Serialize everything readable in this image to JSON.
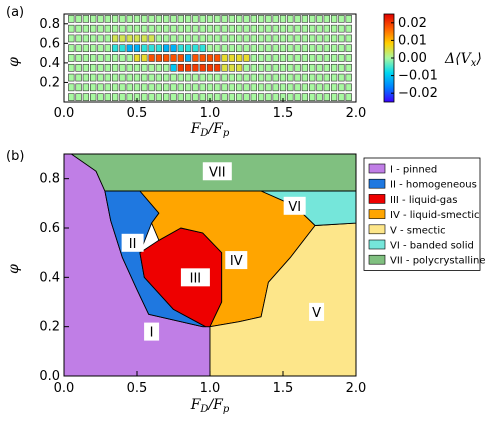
{
  "chart_data": [
    {
      "type": "heatmap",
      "panel_label": "(a)",
      "xlabel": "F_D/F_p",
      "ylabel": "φ",
      "xlim": [
        0,
        2
      ],
      "ylim": [
        0,
        0.9
      ],
      "xticks": [
        "0.0",
        "0.5",
        "1.0",
        "1.5",
        "2.0"
      ],
      "yticks": [
        "0.2",
        "0.4",
        "0.6",
        "0.8"
      ],
      "colorbar": {
        "label": "Δ⟨V_x⟩",
        "range": [
          -0.025,
          0.025
        ],
        "ticks": [
          "0.02",
          "0.01",
          "0.00",
          "−0.01",
          "−0.02"
        ],
        "colors": [
          "#3a00ff",
          "#0080ff",
          "#00d8f0",
          "#a8f8a0",
          "#ffd000",
          "#ff6000",
          "#e00000"
        ]
      },
      "phi_rows": [
        0.05,
        0.15,
        0.25,
        0.35,
        0.45,
        0.55,
        0.65,
        0.75,
        0.85
      ],
      "fd_start": 0.05,
      "fd_step": 0.05,
      "fd_count": 39,
      "default_value": 0.0,
      "features": [
        {
          "phi": 0.45,
          "from": 0.6,
          "to": 1.05,
          "value": 0.018
        },
        {
          "phi": 0.45,
          "from": 0.5,
          "to": 0.55,
          "value": 0.006
        },
        {
          "phi": 0.45,
          "from": 1.1,
          "to": 1.25,
          "value": 0.006
        },
        {
          "phi": 0.45,
          "from": 0.85,
          "to": 0.85,
          "value": -0.012
        },
        {
          "phi": 0.35,
          "from": 0.8,
          "to": 1.05,
          "value": 0.02
        },
        {
          "phi": 0.35,
          "from": 0.75,
          "to": 0.75,
          "value": -0.01
        },
        {
          "phi": 0.35,
          "from": 1.1,
          "to": 1.2,
          "value": 0.005
        },
        {
          "phi": 0.55,
          "from": 0.35,
          "to": 0.95,
          "value": -0.006
        },
        {
          "phi": 0.55,
          "from": 0.45,
          "to": 0.5,
          "value": -0.012
        },
        {
          "phi": 0.55,
          "from": 0.7,
          "to": 0.75,
          "value": -0.012
        },
        {
          "phi": 0.65,
          "from": 0.35,
          "to": 0.6,
          "value": 0.004
        }
      ]
    },
    {
      "type": "area",
      "panel_label": "(b)",
      "xlabel": "F_D/F_p",
      "ylabel": "φ",
      "xlim": [
        0,
        2
      ],
      "ylim": [
        0,
        0.9
      ],
      "xticks": [
        "0.0",
        "0.5",
        "1.0",
        "1.5",
        "2.0"
      ],
      "yticks": [
        "0.0",
        "0.2",
        "0.4",
        "0.6",
        "0.8"
      ],
      "regions": [
        {
          "id": "I",
          "label": "I - pinned",
          "color": "#c07ee6",
          "points": [
            [
              0,
              0
            ],
            [
              1.0,
              0
            ],
            [
              1.0,
              0.2
            ],
            [
              0.95,
              0.2
            ],
            [
              0.58,
              0.25
            ],
            [
              0.5,
              0.35
            ],
            [
              0.4,
              0.48
            ],
            [
              0.32,
              0.63
            ],
            [
              0.28,
              0.75
            ],
            [
              0.22,
              0.83
            ],
            [
              0.1,
              0.9
            ],
            [
              0,
              0.9
            ]
          ],
          "label_at": [
            0.6,
            0.18
          ]
        },
        {
          "id": "II",
          "label": "II - homogeneous",
          "color": "#1f78e0",
          "points": [
            [
              0.28,
              0.75
            ],
            [
              0.52,
              0.75
            ],
            [
              0.65,
              0.66
            ],
            [
              0.6,
              0.62
            ],
            [
              0.52,
              0.5
            ],
            [
              0.55,
              0.4
            ],
            [
              0.75,
              0.27
            ],
            [
              0.97,
              0.2
            ],
            [
              0.95,
              0.2
            ],
            [
              0.58,
              0.25
            ],
            [
              0.5,
              0.35
            ],
            [
              0.4,
              0.48
            ],
            [
              0.32,
              0.63
            ]
          ],
          "label_at": [
            0.47,
            0.54
          ]
        },
        {
          "id": "III",
          "label": "III - liquid-gas",
          "color": "#ee0000",
          "points": [
            [
              0.65,
              0.55
            ],
            [
              0.8,
              0.6
            ],
            [
              0.95,
              0.58
            ],
            [
              1.08,
              0.5
            ],
            [
              1.08,
              0.3
            ],
            [
              1.0,
              0.2
            ],
            [
              0.97,
              0.2
            ],
            [
              0.75,
              0.27
            ],
            [
              0.55,
              0.4
            ],
            [
              0.52,
              0.5
            ]
          ],
          "label_at": [
            0.9,
            0.4
          ]
        },
        {
          "id": "IV",
          "label": "IV - liquid-smectic",
          "color": "#ffa500",
          "points": [
            [
              0.52,
              0.75
            ],
            [
              1.35,
              0.75
            ],
            [
              1.58,
              0.69
            ],
            [
              1.72,
              0.61
            ],
            [
              1.55,
              0.48
            ],
            [
              1.4,
              0.38
            ],
            [
              1.35,
              0.24
            ],
            [
              1.2,
              0.22
            ],
            [
              1.0,
              0.2
            ],
            [
              1.08,
              0.3
            ],
            [
              1.08,
              0.5
            ],
            [
              0.95,
              0.58
            ],
            [
              0.8,
              0.6
            ],
            [
              0.65,
              0.55
            ],
            [
              0.6,
              0.62
            ],
            [
              0.65,
              0.66
            ]
          ],
          "label_at": [
            1.18,
            0.47
          ]
        },
        {
          "id": "V",
          "label": "V - smectic",
          "color": "#fde68a",
          "points": [
            [
              1.0,
              0
            ],
            [
              2.0,
              0
            ],
            [
              2.0,
              0.62
            ],
            [
              1.72,
              0.61
            ],
            [
              1.55,
              0.48
            ],
            [
              1.4,
              0.38
            ],
            [
              1.35,
              0.24
            ],
            [
              1.2,
              0.22
            ],
            [
              1.0,
              0.2
            ]
          ],
          "label_at": [
            1.73,
            0.26
          ]
        },
        {
          "id": "VI",
          "label": "VI - banded solid",
          "color": "#75e6da",
          "points": [
            [
              0.52,
              0.75
            ],
            [
              2.0,
              0.75
            ],
            [
              2.0,
              0.62
            ],
            [
              1.72,
              0.61
            ],
            [
              1.58,
              0.69
            ],
            [
              1.35,
              0.75
            ]
          ],
          "label_at": [
            1.58,
            0.69
          ]
        },
        {
          "id": "VII",
          "label": "VII - polycrystalline",
          "color": "#80c080",
          "points": [
            [
              0.05,
              0.9
            ],
            [
              2.0,
              0.9
            ],
            [
              2.0,
              0.75
            ],
            [
              0.28,
              0.75
            ],
            [
              0.22,
              0.83
            ]
          ],
          "label_at": [
            1.05,
            0.83
          ]
        }
      ]
    }
  ]
}
